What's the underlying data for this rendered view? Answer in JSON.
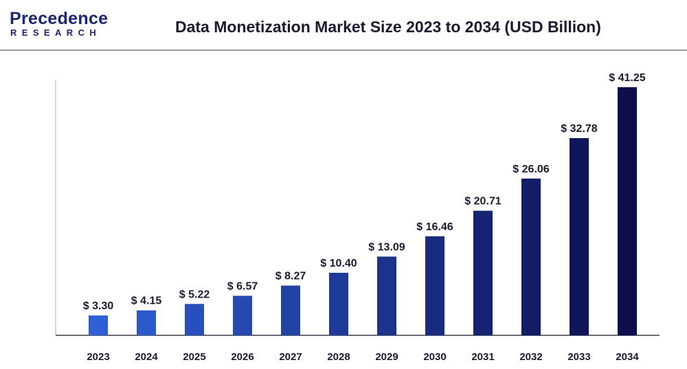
{
  "brand": {
    "logo_top": "Precedence",
    "logo_bottom": "RESEARCH"
  },
  "chart_data": {
    "type": "bar",
    "title": "Data Monetization Market Size 2023 to 2034 (USD Billion)",
    "xlabel": "",
    "ylabel": "",
    "categories": [
      "2023",
      "2024",
      "2025",
      "2026",
      "2027",
      "2028",
      "2029",
      "2030",
      "2031",
      "2032",
      "2033",
      "2034"
    ],
    "values": [
      3.3,
      4.15,
      5.22,
      6.57,
      8.27,
      10.4,
      13.09,
      16.46,
      20.71,
      26.06,
      32.78,
      41.25
    ],
    "value_labels": [
      "$ 3.30",
      "$ 4.15",
      "$ 5.22",
      "$ 6.57",
      "$ 8.27",
      "$ 10.40",
      "$ 13.09",
      "$ 16.46",
      "$ 20.71",
      "$ 26.06",
      "$ 32.78",
      "$ 41.25"
    ],
    "ylim": [
      0,
      45
    ],
    "grid": false,
    "legend": "none",
    "bar_color_start": "#2e5fd6",
    "bar_color_end": "#0c0e4d"
  }
}
